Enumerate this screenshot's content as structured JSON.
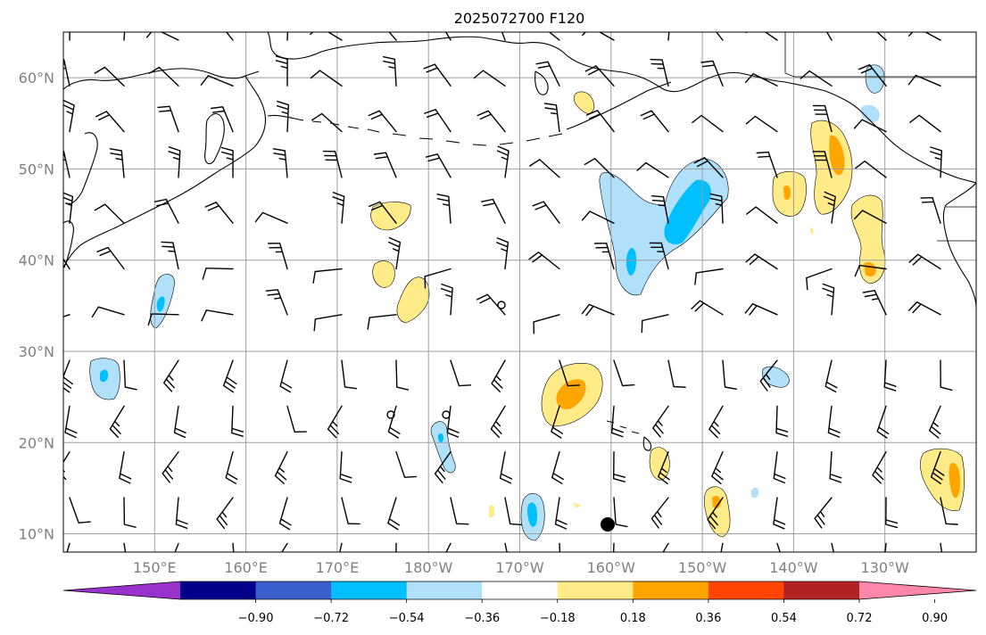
{
  "title": "2025072700 F120",
  "map": {
    "lat_labels": [
      "60°N",
      "50°N",
      "40°N",
      "30°N",
      "20°N",
      "10°N"
    ],
    "lon_labels": [
      "150°E",
      "160°E",
      "170°E",
      "180°W",
      "170°W",
      "160°W",
      "150°W",
      "140°W",
      "130°W"
    ],
    "lon_range": [
      140,
      240
    ],
    "lat_range": [
      8,
      65
    ],
    "shading_colors": {
      "light_blue": "#b0e0fa",
      "blue": "#00bfff",
      "light_yellow": "#ffeb88",
      "orange": "#ffa500"
    }
  },
  "colorbar": {
    "tick_labels": [
      "−0.90",
      "−0.72",
      "−0.54",
      "−0.36",
      "−0.18",
      "0.18",
      "0.36",
      "0.54",
      "0.72",
      "0.90"
    ],
    "colors": [
      "#9932cc",
      "#00008b",
      "#3a5fcd",
      "#00bfff",
      "#b0e0fa",
      "#ffffff",
      "#ffeb88",
      "#ffa500",
      "#ff4500",
      "#b22222",
      "#ff88aa"
    ]
  }
}
